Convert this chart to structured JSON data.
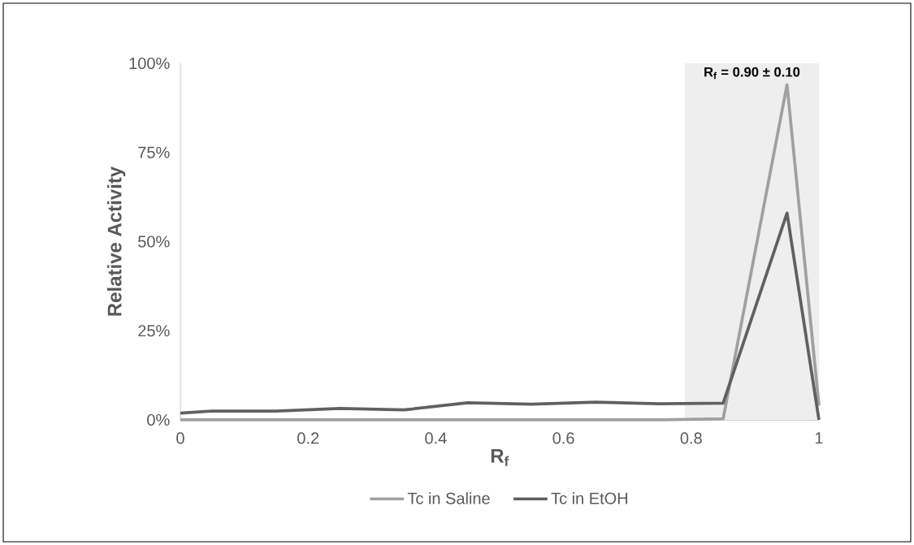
{
  "chart_data": {
    "type": "line",
    "xlabel": "R$_{f}$",
    "ylabel": "Relative Activity",
    "x": [
      0,
      0.05,
      0.15,
      0.25,
      0.35,
      0.45,
      0.55,
      0.65,
      0.75,
      0.85,
      0.95,
      1.0
    ],
    "series": [
      {
        "name": "Tc in Saline",
        "color": "#a0a0a0",
        "values": [
          0,
          0,
          0,
          0,
          0,
          0,
          0,
          0,
          0,
          0.3,
          94,
          4
        ]
      },
      {
        "name": "Tc in EtOH",
        "color": "#606060",
        "values": [
          1.9,
          2.5,
          2.5,
          3.2,
          2.8,
          4.8,
          4.4,
          5.0,
          4.5,
          4.7,
          58,
          0
        ]
      }
    ],
    "xlim": [
      0,
      1
    ],
    "ylim": [
      0,
      100
    ],
    "xticks": [
      0,
      0.2,
      0.4,
      0.6,
      0.8,
      1
    ],
    "yticks": [
      {
        "value": 0,
        "label": "0%"
      },
      {
        "value": 25,
        "label": "25%"
      },
      {
        "value": 50,
        "label": "50%"
      },
      {
        "value": 75,
        "label": "75%"
      },
      {
        "value": 100,
        "label": "100%"
      }
    ],
    "bands": [
      {
        "axis": "x",
        "from": 0.79,
        "to": 1.0,
        "label": "**R$_{f}$ = 0.90 ± 0.10**",
        "color": "#eeeeee"
      }
    ],
    "grid": false,
    "legend": "bottom",
    "marker": "none",
    "line_style": "solid"
  }
}
